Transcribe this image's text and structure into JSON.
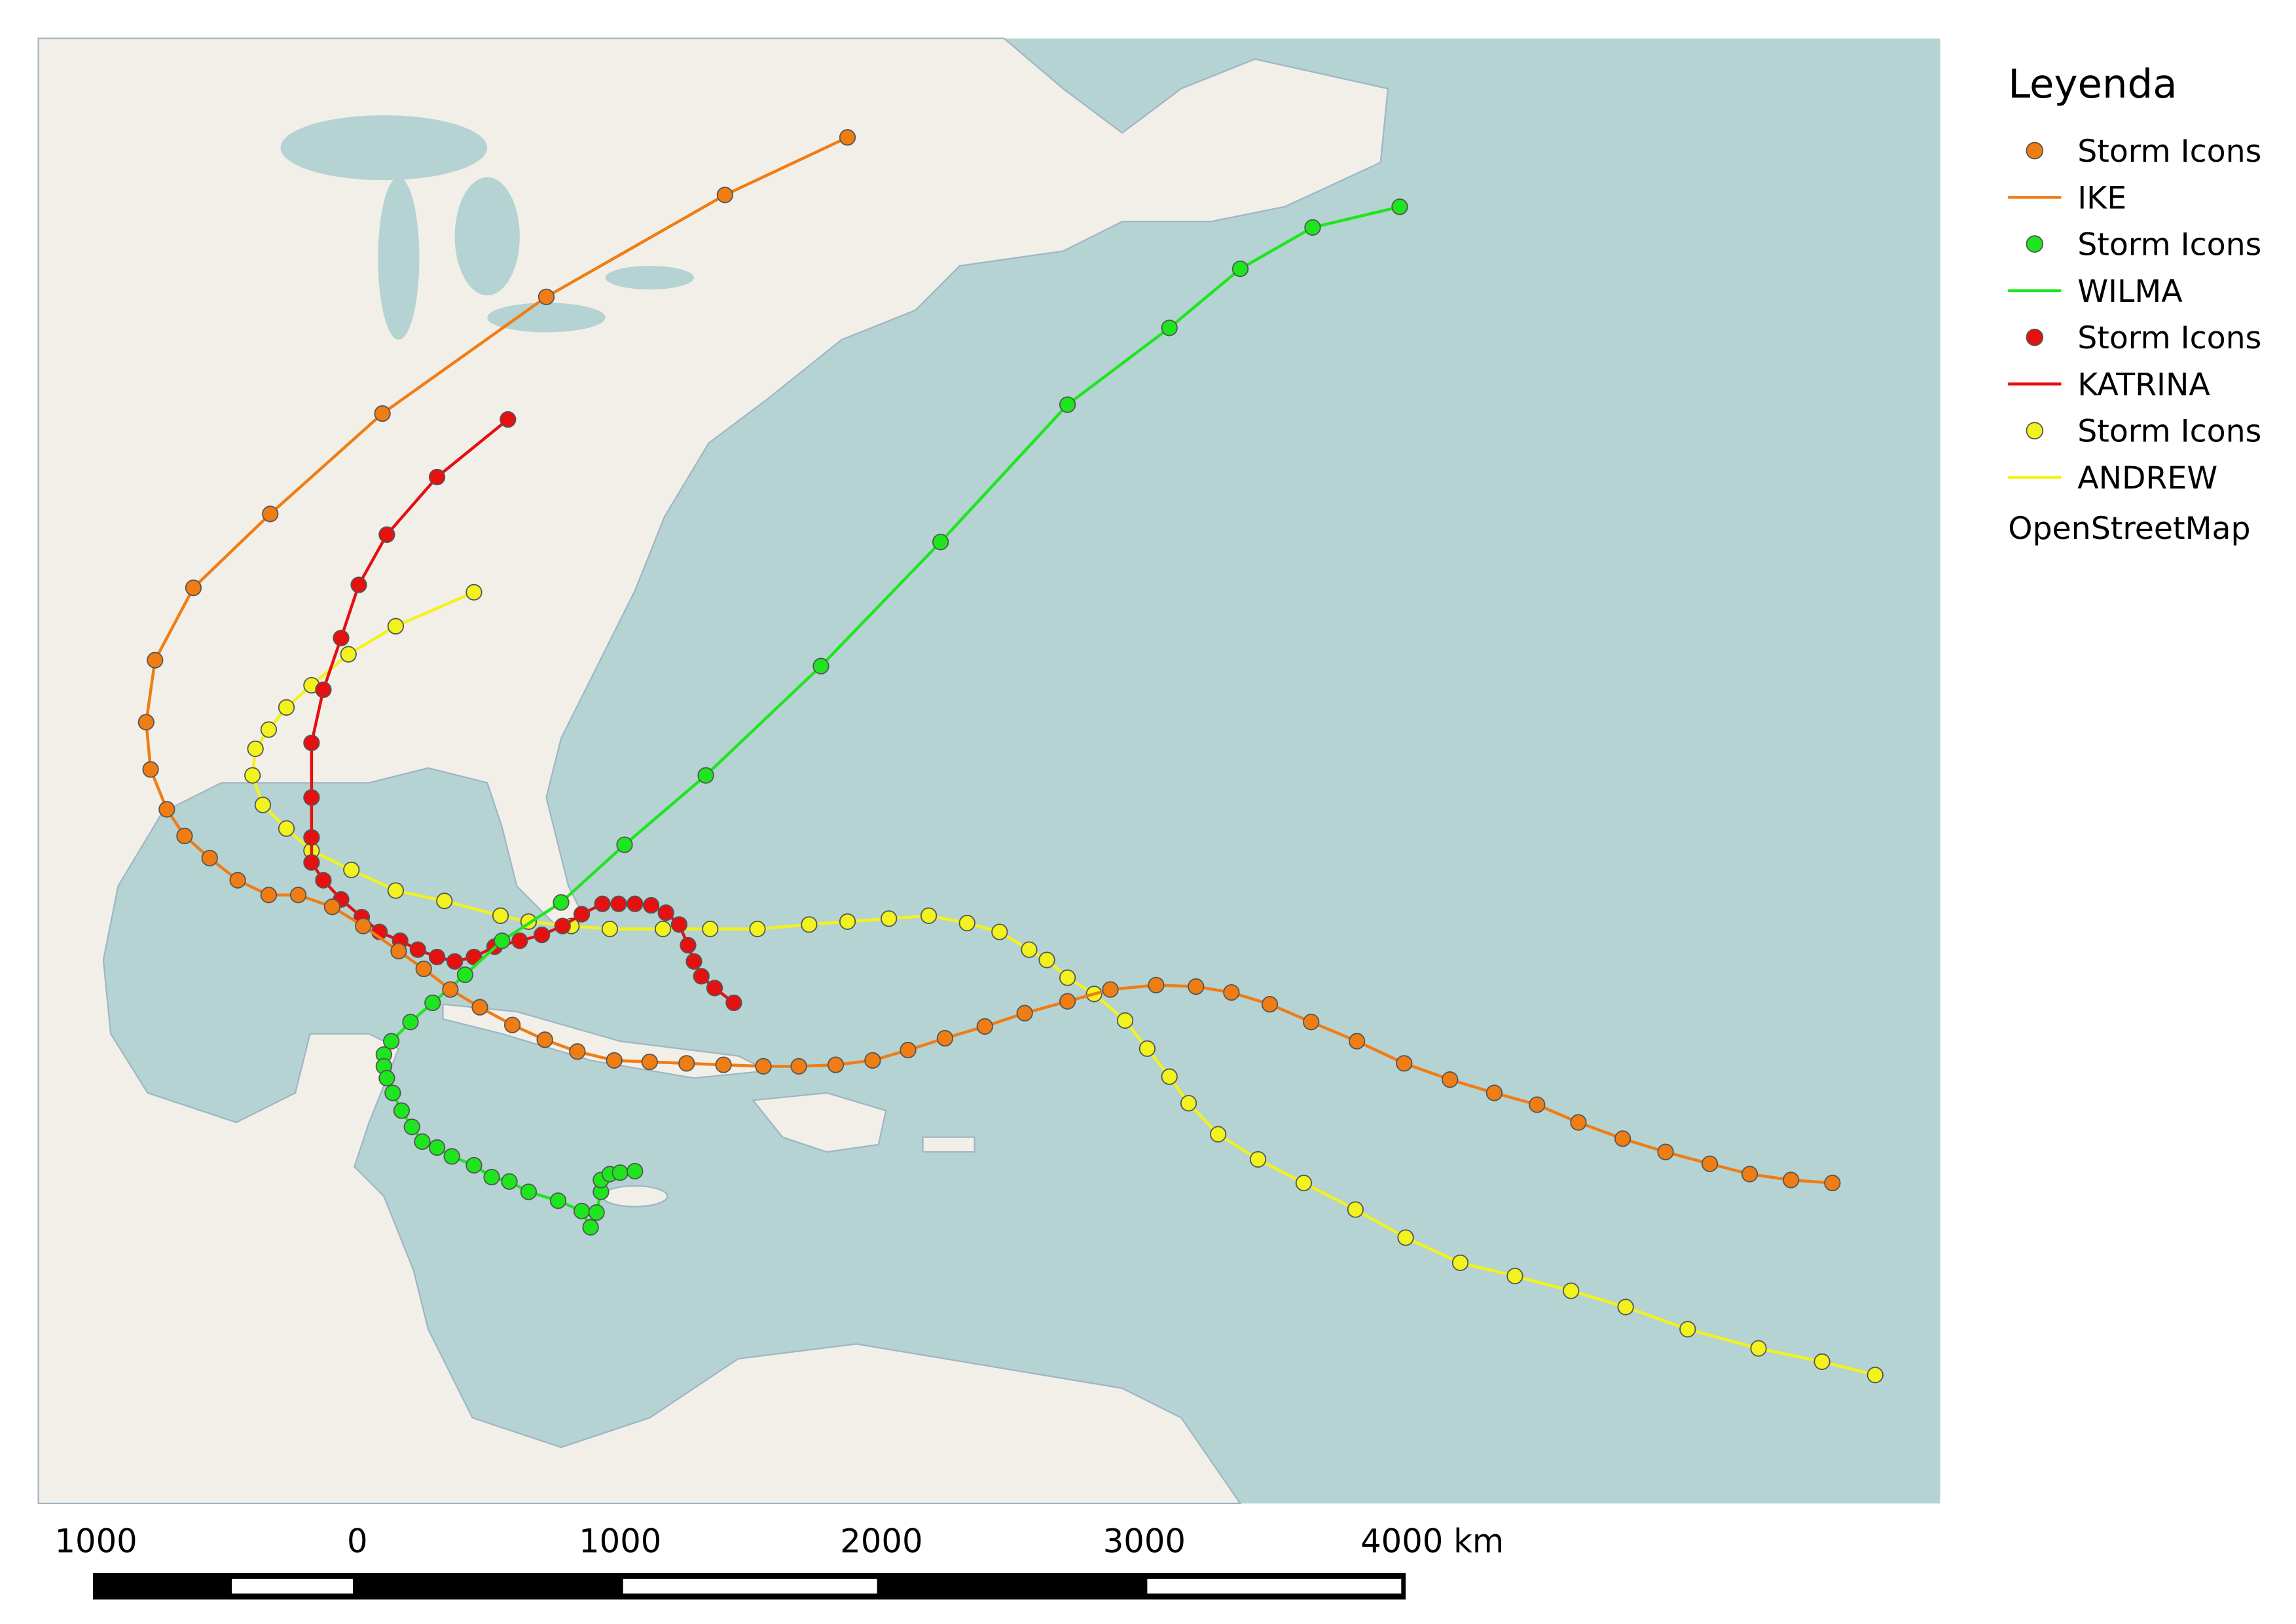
{
  "legend": {
    "title": "Leyenda",
    "items": [
      {
        "label": "Storm Icons",
        "symbol": "point",
        "color": "#f07d14"
      },
      {
        "label": "IKE",
        "symbol": "line",
        "color": "#f07d14"
      },
      {
        "label": "Storm Icons",
        "symbol": "point",
        "color": "#1ee61e"
      },
      {
        "label": "WILMA",
        "symbol": "line",
        "color": "#1ee61e"
      },
      {
        "label": "Storm Icons",
        "symbol": "point",
        "color": "#e61010"
      },
      {
        "label": "KATRINA",
        "symbol": "line",
        "color": "#e61010"
      },
      {
        "label": "Storm Icons",
        "symbol": "point",
        "color": "#f2f21e"
      },
      {
        "label": "ANDREW",
        "symbol": "line",
        "color": "#f2f21e"
      }
    ],
    "basemap": "OpenStreetMap"
  },
  "scale_bar": {
    "labels": [
      "1000",
      "0",
      "1000",
      "2000",
      "3000",
      "4000 km"
    ]
  }
}
